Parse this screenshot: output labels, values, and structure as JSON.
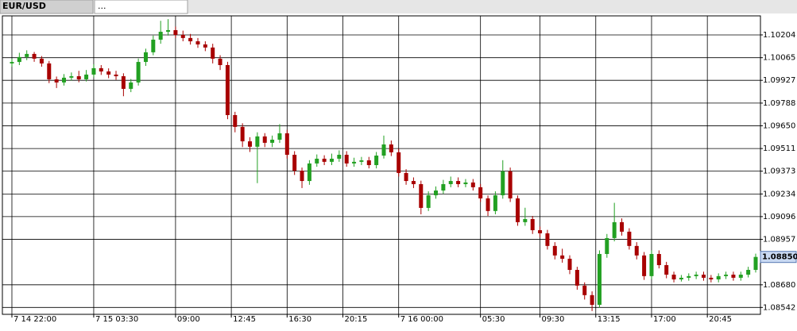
{
  "tabs": [
    "EUR/USD",
    "..."
  ],
  "chart_data": {
    "type": "candlestick",
    "x": [
      0,
      0.5,
      1,
      1.5,
      2,
      2.5,
      3,
      3.5,
      4,
      4.5,
      5,
      5.5,
      6,
      6.5,
      7,
      7.5,
      8,
      8.5,
      9,
      9.5,
      10,
      10.5,
      11,
      11.5,
      12,
      12.5,
      13,
      13.5,
      14,
      14.5,
      15,
      15.5,
      16,
      16.5,
      17,
      17.5,
      18,
      18.5,
      19,
      19.5,
      20,
      20.5,
      21,
      21.5,
      22,
      22.5,
      23,
      23.5,
      24,
      24.5,
      25,
      25.5,
      26,
      26.5,
      27,
      27.5,
      28,
      28.5,
      29,
      29.5,
      30,
      30.5,
      31,
      31.5,
      32,
      32.5,
      33,
      33.5,
      34,
      34.5,
      35,
      35.5,
      36,
      36.5,
      37,
      37.5,
      38,
      38.5,
      39,
      39.5,
      40,
      40.5,
      41,
      41.5,
      42,
      42.5,
      43,
      43.5,
      44,
      44.5,
      45,
      45.5,
      46,
      46.5,
      47,
      47.5,
      48,
      48.5,
      49,
      49.5,
      50
    ],
    "open": [
      1.1003,
      1.10039,
      1.10069,
      1.10088,
      1.10059,
      1.1003,
      1.09933,
      1.09914,
      1.09943,
      1.09952,
      1.09933,
      1.09962,
      1.10001,
      1.09981,
      1.09962,
      1.09952,
      1.09875,
      1.09914,
      1.10039,
      1.10098,
      1.10175,
      1.10223,
      1.10233,
      1.10204,
      1.10185,
      1.10165,
      1.10146,
      1.10127,
      1.10059,
      1.1002,
      1.09715,
      1.09643,
      1.09555,
      1.09522,
      1.09585,
      1.09546,
      1.09565,
      1.09604,
      1.09473,
      1.09376,
      1.09313,
      1.0942,
      1.09449,
      1.0943,
      1.09449,
      1.09473,
      1.0942,
      1.0943,
      1.09439,
      1.0941,
      1.09468,
      1.09536,
      1.09488,
      1.09362,
      1.09313,
      1.09294,
      1.09149,
      1.09226,
      1.09255,
      1.09294,
      1.09313,
      1.09294,
      1.09304,
      1.09275,
      1.09207,
      1.0913,
      1.09226,
      1.09372,
      1.09207,
      1.09062,
      1.09081,
      1.09013,
      1.08994,
      1.08917,
      1.08859,
      1.08839,
      1.08771,
      1.08675,
      1.08617,
      1.08558,
      1.08868,
      1.08965,
      1.09062,
      1.09004,
      1.08917,
      1.08859,
      1.08733,
      1.08868,
      1.088,
      1.08742,
      1.08713,
      1.08723,
      1.08733,
      1.08742,
      1.08723,
      1.08713,
      1.08733,
      1.08742,
      1.08723,
      1.08742,
      1.08771
    ],
    "high": [
      1.1006,
      1.10095,
      1.1011,
      1.101,
      1.10075,
      1.10045,
      1.0995,
      1.09965,
      1.09975,
      1.09985,
      1.0999,
      1.10025,
      1.1002,
      1.1,
      1.09985,
      1.0997,
      1.09935,
      1.1006,
      1.1012,
      1.102,
      1.1029,
      1.103,
      1.10255,
      1.1023,
      1.1021,
      1.10185,
      1.10165,
      1.1015,
      1.1008,
      1.1004,
      1.09735,
      1.09665,
      1.0958,
      1.0961,
      1.09605,
      1.0959,
      1.0966,
      1.09625,
      1.09495,
      1.09395,
      1.0944,
      1.09475,
      1.0947,
      1.0948,
      1.095,
      1.09495,
      1.09455,
      1.0946,
      1.0946,
      1.0949,
      1.0959,
      1.0956,
      1.0951,
      1.09385,
      1.09335,
      1.09315,
      1.0925,
      1.0928,
      1.0932,
      1.0934,
      1.09335,
      1.09325,
      1.09325,
      1.09295,
      1.09225,
      1.0925,
      1.0944,
      1.09395,
      1.09225,
      1.0915,
      1.091,
      1.09035,
      1.09015,
      1.0894,
      1.089,
      1.0886,
      1.0879,
      1.08695,
      1.0864,
      1.0889,
      1.0899,
      1.0918,
      1.09085,
      1.09025,
      1.0894,
      1.0888,
      1.0889,
      1.0889,
      1.0882,
      1.0876,
      1.0874,
      1.0875,
      1.0876,
      1.0876,
      1.0874,
      1.0875,
      1.0876,
      1.0876,
      1.0876,
      1.0879,
      1.0887
    ],
    "low": [
      1.1001,
      1.1002,
      1.1005,
      1.1004,
      1.1001,
      1.0991,
      1.0988,
      1.09895,
      1.09925,
      1.09915,
      1.0992,
      1.09945,
      1.0996,
      1.0994,
      1.0993,
      1.0983,
      1.09855,
      1.09895,
      1.10015,
      1.1008,
      1.1015,
      1.102,
      1.10185,
      1.10165,
      1.10145,
      1.10125,
      1.10105,
      1.1003,
      1.0999,
      1.0969,
      1.0961,
      1.0952,
      1.0949,
      1.093,
      1.0952,
      1.0952,
      1.09545,
      1.0945,
      1.0935,
      1.0927,
      1.0929,
      1.094,
      1.0941,
      1.0941,
      1.0943,
      1.094,
      1.094,
      1.0941,
      1.0939,
      1.0939,
      1.0945,
      1.09465,
      1.0934,
      1.0929,
      1.0927,
      1.0911,
      1.0913,
      1.09205,
      1.09235,
      1.09275,
      1.09275,
      1.09275,
      1.09255,
      1.09185,
      1.091,
      1.0911,
      1.09205,
      1.09185,
      1.0904,
      1.0904,
      1.0899,
      1.0897,
      1.08895,
      1.08835,
      1.08815,
      1.08745,
      1.0865,
      1.0859,
      1.0852,
      1.0854,
      1.08845,
      1.08945,
      1.0898,
      1.08895,
      1.08835,
      1.0871,
      1.08715,
      1.0878,
      1.0872,
      1.08695,
      1.087,
      1.08705,
      1.08715,
      1.08705,
      1.08695,
      1.08695,
      1.08715,
      1.08705,
      1.08705,
      1.08725,
      1.08755
    ],
    "close": [
      1.10039,
      1.10069,
      1.10088,
      1.10059,
      1.1003,
      1.09933,
      1.09914,
      1.09943,
      1.09952,
      1.09933,
      1.09962,
      1.10001,
      1.09981,
      1.09962,
      1.09952,
      1.09875,
      1.09914,
      1.10039,
      1.10098,
      1.10175,
      1.10223,
      1.10233,
      1.10204,
      1.10185,
      1.10165,
      1.10146,
      1.10127,
      1.10059,
      1.1002,
      1.09715,
      1.09643,
      1.09555,
      1.09522,
      1.09585,
      1.09546,
      1.09565,
      1.09604,
      1.09473,
      1.09376,
      1.09313,
      1.0942,
      1.09449,
      1.0943,
      1.09449,
      1.09473,
      1.0942,
      1.0943,
      1.09439,
      1.0941,
      1.09468,
      1.09536,
      1.09488,
      1.09362,
      1.09313,
      1.09294,
      1.09149,
      1.09226,
      1.09255,
      1.09294,
      1.09313,
      1.09294,
      1.09304,
      1.09275,
      1.09207,
      1.0913,
      1.09226,
      1.09372,
      1.09207,
      1.09062,
      1.09081,
      1.09013,
      1.08994,
      1.08917,
      1.08859,
      1.08839,
      1.08771,
      1.08675,
      1.08617,
      1.08558,
      1.08868,
      1.08965,
      1.09062,
      1.09004,
      1.08917,
      1.08859,
      1.08733,
      1.08868,
      1.088,
      1.08742,
      1.08713,
      1.08723,
      1.08733,
      1.08742,
      1.08723,
      1.08713,
      1.08733,
      1.08742,
      1.08723,
      1.08742,
      1.08771,
      1.0885
    ],
    "up_color": "#22a022",
    "down_color": "#a80000",
    "xlim": [
      -0.64,
      50.32
    ],
    "ylim": [
      1.085,
      1.1032
    ],
    "xticks": [
      {
        "value": 0,
        "label": "7 14 22:00"
      },
      {
        "value": 5.5,
        "label": "7 15 03:30"
      },
      {
        "value": 11,
        "label": "09:00"
      },
      {
        "value": 14.75,
        "label": "12:45"
      },
      {
        "value": 18.5,
        "label": "16:30"
      },
      {
        "value": 22.25,
        "label": "20:15"
      },
      {
        "value": 26,
        "label": "7 16 00:00"
      },
      {
        "value": 31.5,
        "label": "05:30"
      },
      {
        "value": 35.5,
        "label": "09:30"
      },
      {
        "value": 39.25,
        "label": "13:15"
      },
      {
        "value": 43,
        "label": "17:00"
      },
      {
        "value": 46.75,
        "label": "20:45"
      }
    ],
    "yticks": [
      1.10204,
      1.10065,
      1.09927,
      1.09788,
      {
        "value": 1.0965,
        "label": "1.09650"
      },
      1.09511,
      1.09373,
      1.09234,
      1.09096,
      1.08957,
      {
        "value": 1.0868,
        "label": "1.08680"
      },
      1.08542
    ],
    "last_price": {
      "value": 1.0885,
      "label": "1.08850"
    },
    "grid": true
  }
}
